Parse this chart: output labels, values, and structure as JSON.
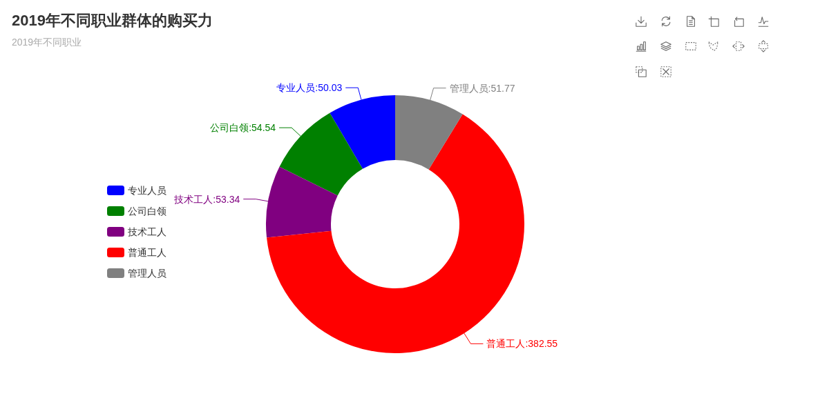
{
  "chart_data": {
    "type": "donut",
    "title": "2019年不同职业群体的购买力",
    "subtitle": "2019年不同职业",
    "categories": [
      "专业人员",
      "公司白领",
      "技术工人",
      "普通工人",
      "管理人员"
    ],
    "values": [
      50.03,
      54.54,
      53.34,
      382.55,
      51.77
    ],
    "value_labels": [
      ":50.03",
      ":54.54",
      ":53.34",
      ":382.55",
      ":51.77"
    ],
    "colors": [
      "#0000ff",
      "#008000",
      "#800080",
      "#ff0000",
      "#808080"
    ],
    "legend": "left"
  }
}
